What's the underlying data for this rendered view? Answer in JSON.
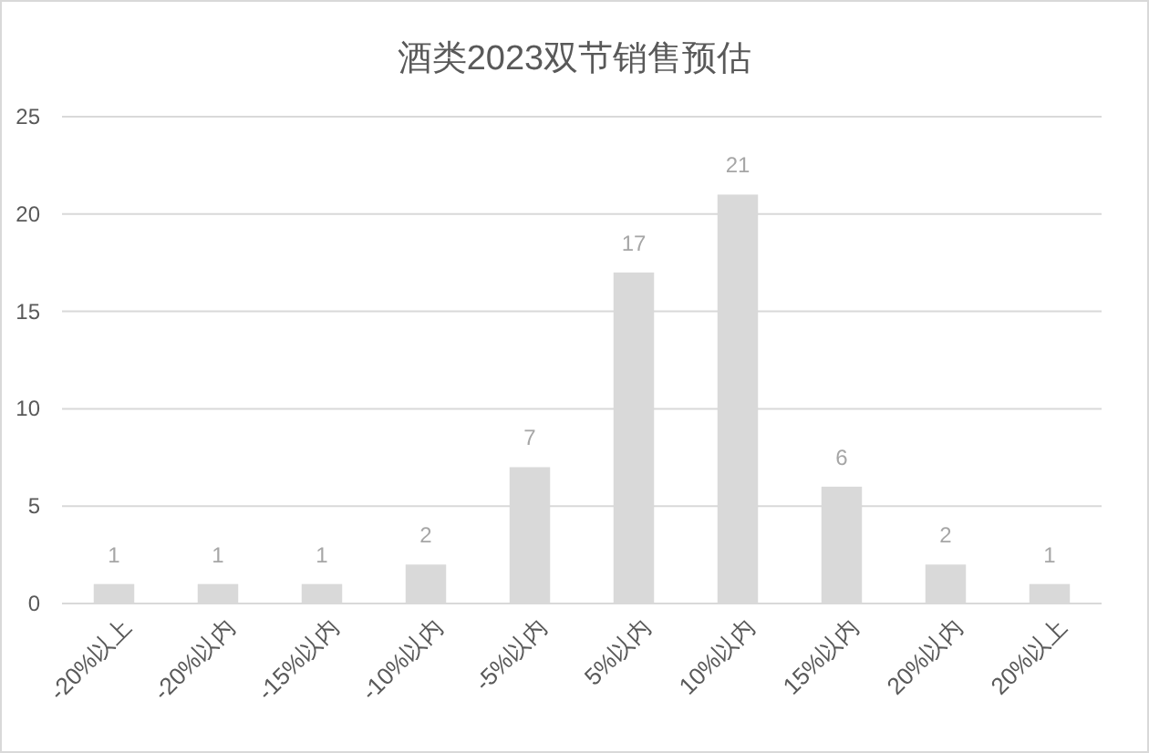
{
  "chart_data": {
    "type": "bar",
    "title": "酒类2023双节销售预估",
    "categories": [
      "-20%以上",
      "-20%以内",
      "-15%以内",
      "-10%以内",
      "-5%以内",
      "5%以内",
      "10%以内",
      "15%以内",
      "20%以内",
      "20%以上"
    ],
    "values": [
      1,
      1,
      1,
      2,
      7,
      17,
      21,
      6,
      2,
      1
    ],
    "color": "#d9d9d9",
    "ylim": [
      0,
      25
    ],
    "yticks": [
      0,
      5,
      10,
      15,
      20,
      25
    ],
    "grid": "y",
    "data_labels": true
  }
}
